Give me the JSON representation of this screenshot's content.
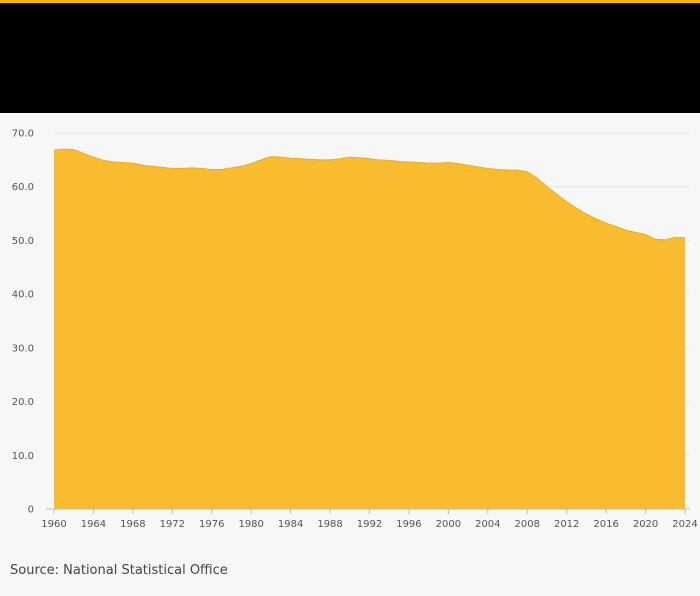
{
  "colors": {
    "accent": "#f5b800",
    "header_bg": "#000000",
    "area_fill": "#f9bc2e",
    "area_stroke": "#f0ad15",
    "grid": "#e3e3e3",
    "axis": "#bbbbbb",
    "page_bg": "#f7f7f7"
  },
  "chart_data": {
    "type": "area",
    "title": "",
    "xlabel": "",
    "ylabel": "",
    "grid": true,
    "xlim": [
      1960,
      2024
    ],
    "ylim": [
      0,
      70
    ],
    "x_ticks": [
      "1960",
      "1964",
      "1968",
      "1972",
      "1976",
      "1980",
      "1984",
      "1988",
      "1992",
      "1996",
      "2000",
      "2004",
      "2008",
      "2012",
      "2016",
      "2020",
      "2024"
    ],
    "y_ticks": [
      "0",
      "10.0",
      "20.0",
      "30.0",
      "40.0",
      "50.0",
      "60.0",
      "70.0"
    ],
    "x": [
      1960,
      1961,
      1962,
      1963,
      1964,
      1965,
      1966,
      1967,
      1968,
      1969,
      1970,
      1971,
      1972,
      1973,
      1974,
      1975,
      1976,
      1977,
      1978,
      1979,
      1980,
      1981,
      1982,
      1983,
      1984,
      1985,
      1986,
      1987,
      1988,
      1989,
      1990,
      1991,
      1992,
      1993,
      1994,
      1995,
      1996,
      1997,
      1998,
      1999,
      2000,
      2001,
      2002,
      2003,
      2004,
      2005,
      2006,
      2007,
      2008,
      2009,
      2010,
      2011,
      2012,
      2013,
      2014,
      2015,
      2016,
      2017,
      2018,
      2019,
      2020,
      2021,
      2022,
      2023,
      2024
    ],
    "values": [
      66.8,
      67.0,
      66.9,
      66.2,
      65.5,
      64.9,
      64.6,
      64.5,
      64.4,
      64.0,
      63.8,
      63.6,
      63.4,
      63.4,
      63.5,
      63.4,
      63.2,
      63.2,
      63.5,
      63.8,
      64.3,
      65.0,
      65.6,
      65.5,
      65.3,
      65.2,
      65.1,
      65.0,
      65.0,
      65.2,
      65.5,
      65.4,
      65.2,
      65.0,
      64.9,
      64.7,
      64.6,
      64.5,
      64.4,
      64.4,
      64.5,
      64.3,
      64.0,
      63.7,
      63.4,
      63.2,
      63.1,
      63.1,
      62.8,
      61.6,
      60.0,
      58.6,
      57.2,
      56.0,
      54.9,
      54.0,
      53.2,
      52.6,
      51.9,
      51.5,
      51.1,
      50.2,
      50.1,
      50.6,
      50.5
    ]
  },
  "source": "Source: National Statistical Office"
}
